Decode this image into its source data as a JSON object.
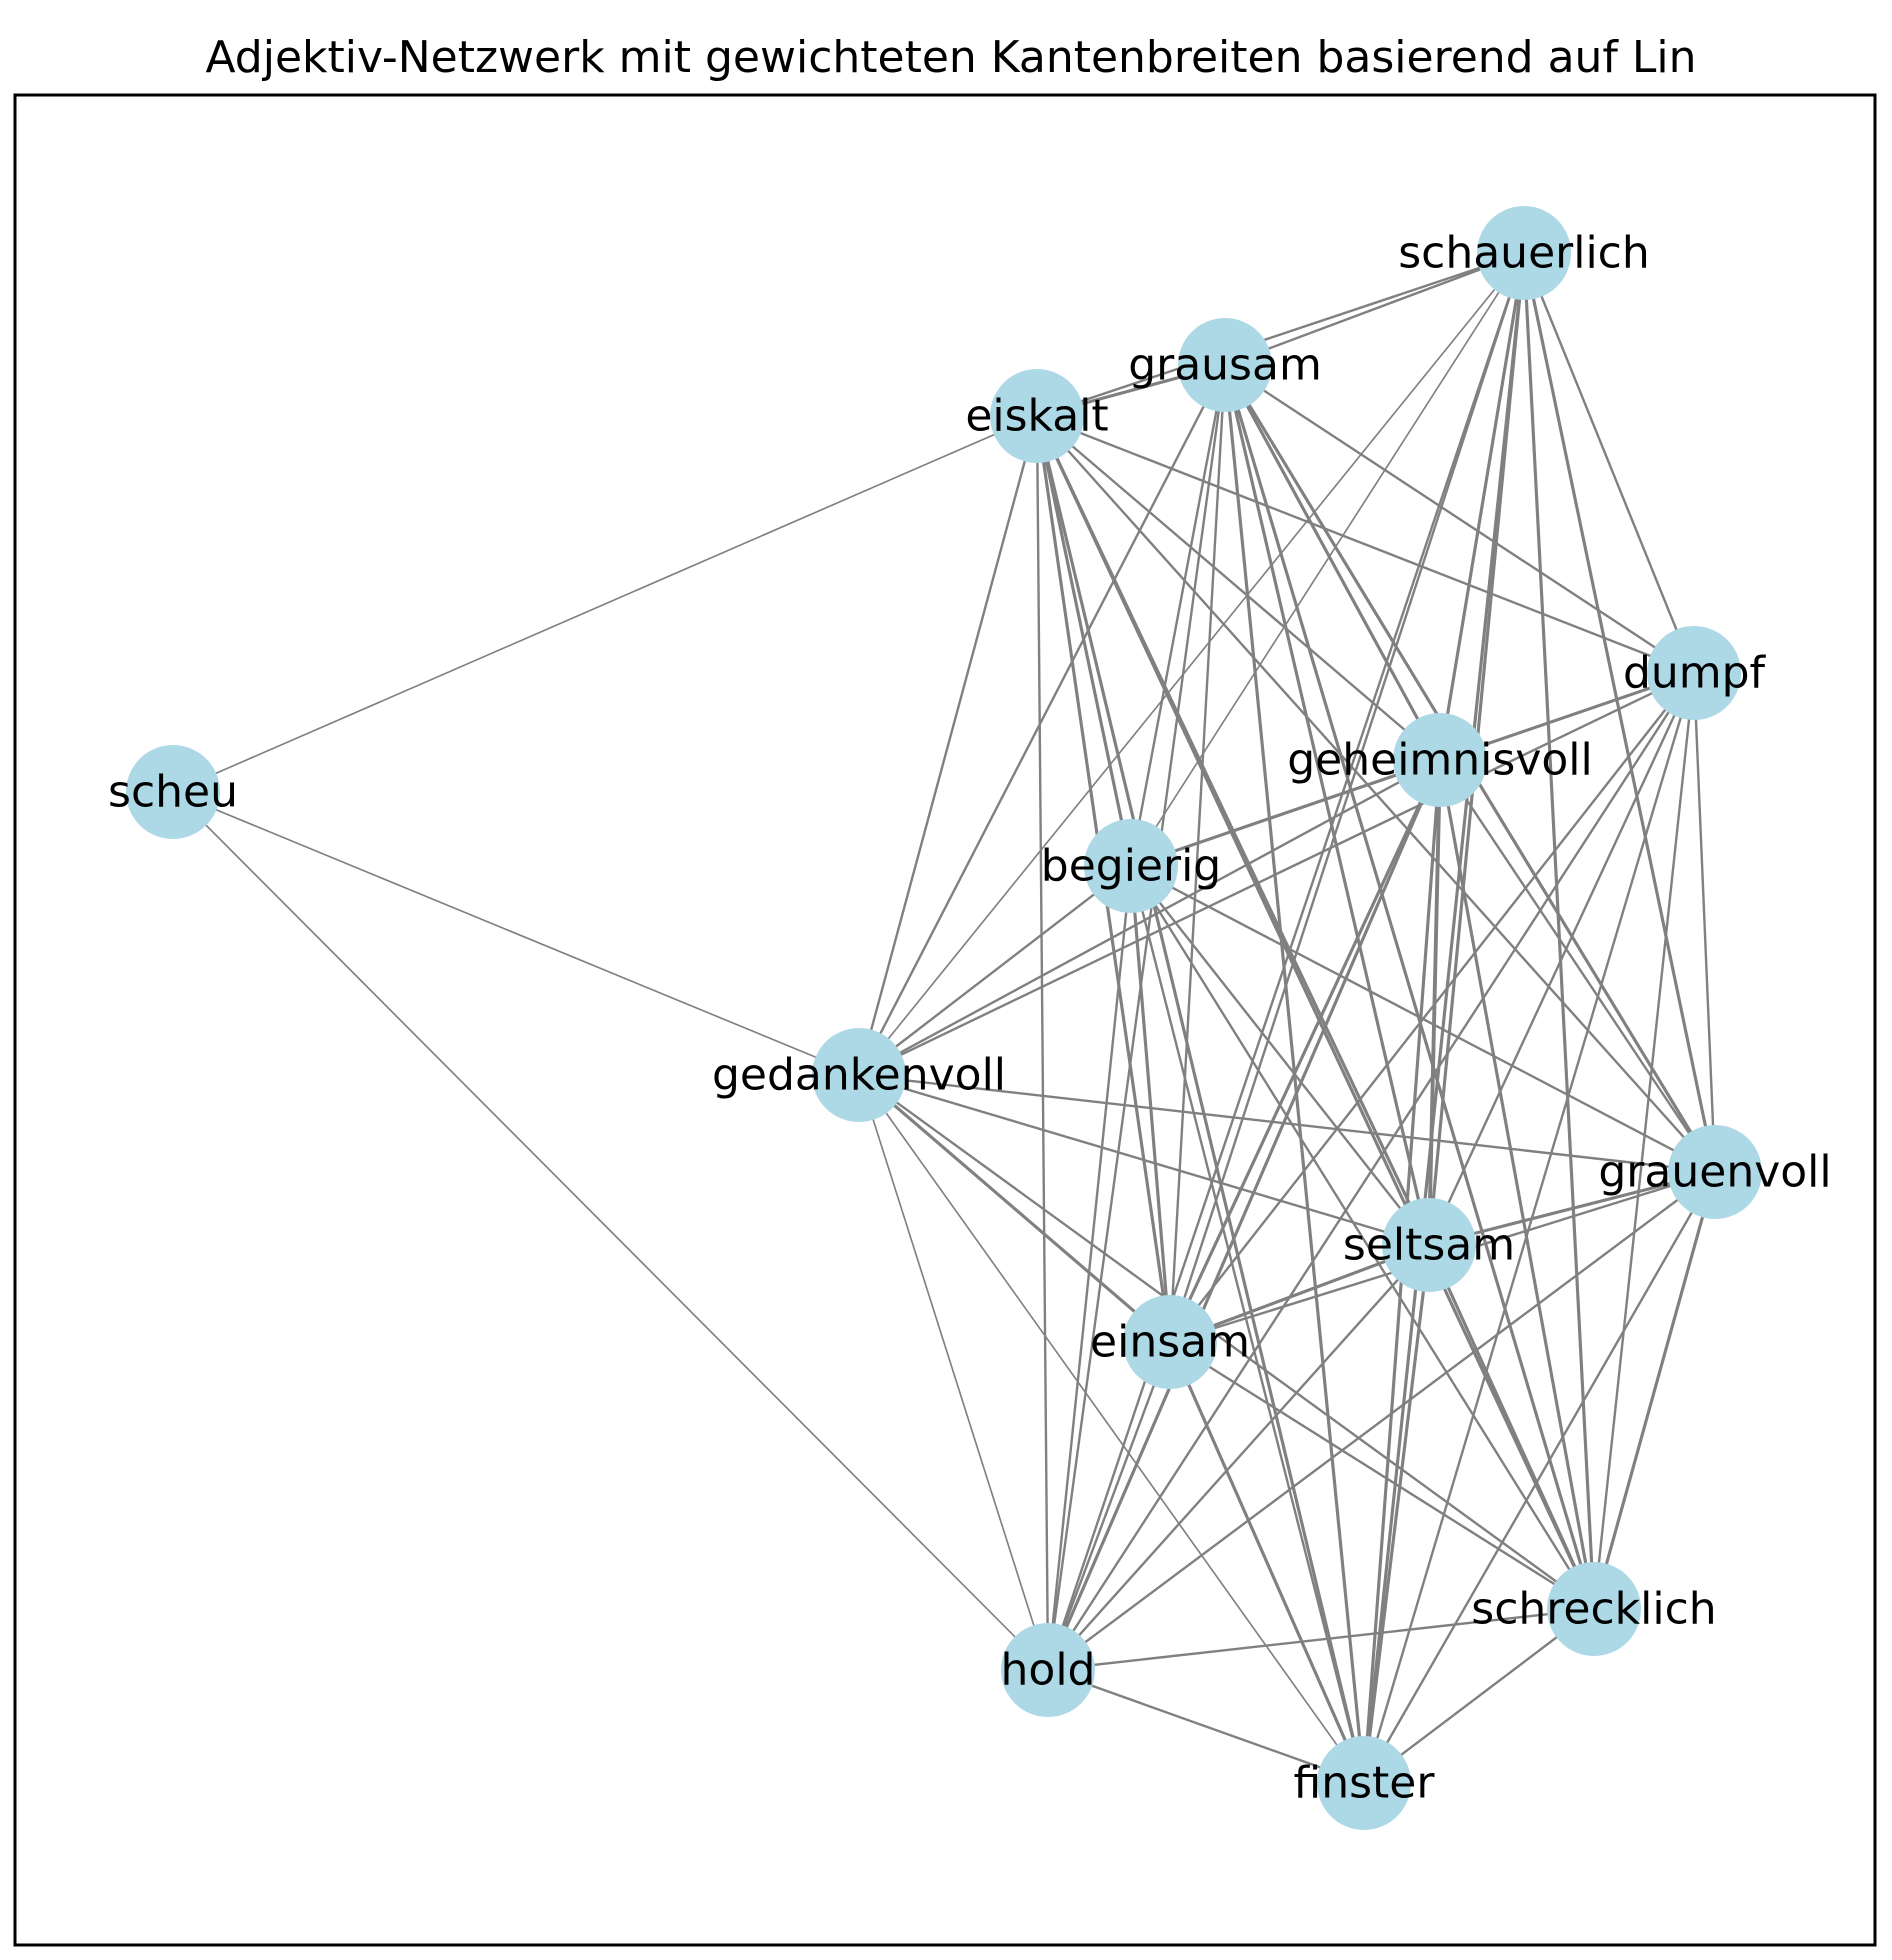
{
  "title": "Adjektiv-Netzwerk mit gewichteten Kantenbreiten basierend auf Lin",
  "colors": {
    "node_fill": "#add8e6",
    "edge_stroke": "#808080",
    "frame_stroke": "#000000",
    "background": "#ffffff"
  },
  "nodes": [
    {
      "id": "schauerlich",
      "label": "schauerlich"
    },
    {
      "id": "grausam",
      "label": "grausam"
    },
    {
      "id": "eiskalt",
      "label": "eiskalt"
    },
    {
      "id": "dumpf",
      "label": "dumpf"
    },
    {
      "id": "geheimnisvoll",
      "label": "geheimnisvoll"
    },
    {
      "id": "scheu",
      "label": "scheu"
    },
    {
      "id": "begierig",
      "label": "begierig"
    },
    {
      "id": "gedankenvoll",
      "label": "gedankenvoll"
    },
    {
      "id": "grauenvoll",
      "label": "grauenvoll"
    },
    {
      "id": "seltsam",
      "label": "seltsam"
    },
    {
      "id": "einsam",
      "label": "einsam"
    },
    {
      "id": "schrecklich",
      "label": "schrecklich"
    },
    {
      "id": "hold",
      "label": "hold"
    },
    {
      "id": "finster",
      "label": "finster"
    }
  ],
  "edges": [
    {
      "source": "scheu",
      "target": "eiskalt",
      "weight": 1
    },
    {
      "source": "scheu",
      "target": "gedankenvoll",
      "weight": 1
    },
    {
      "source": "scheu",
      "target": "hold",
      "weight": 1
    },
    {
      "source": "eiskalt",
      "target": "grausam",
      "weight": 3
    },
    {
      "source": "eiskalt",
      "target": "schauerlich",
      "weight": 2
    },
    {
      "source": "eiskalt",
      "target": "dumpf",
      "weight": 2
    },
    {
      "source": "eiskalt",
      "target": "geheimnisvoll",
      "weight": 2
    },
    {
      "source": "eiskalt",
      "target": "begierig",
      "weight": 3
    },
    {
      "source": "eiskalt",
      "target": "gedankenvoll",
      "weight": 2
    },
    {
      "source": "eiskalt",
      "target": "grauenvoll",
      "weight": 2
    },
    {
      "source": "eiskalt",
      "target": "seltsam",
      "weight": 3
    },
    {
      "source": "eiskalt",
      "target": "einsam",
      "weight": 3
    },
    {
      "source": "eiskalt",
      "target": "schrecklich",
      "weight": 3
    },
    {
      "source": "eiskalt",
      "target": "hold",
      "weight": 2
    },
    {
      "source": "eiskalt",
      "target": "finster",
      "weight": 3
    },
    {
      "source": "grausam",
      "target": "schauerlich",
      "weight": 2
    },
    {
      "source": "grausam",
      "target": "dumpf",
      "weight": 2
    },
    {
      "source": "grausam",
      "target": "geheimnisvoll",
      "weight": 3
    },
    {
      "source": "grausam",
      "target": "begierig",
      "weight": 2
    },
    {
      "source": "grausam",
      "target": "gedankenvoll",
      "weight": 2
    },
    {
      "source": "grausam",
      "target": "grauenvoll",
      "weight": 3
    },
    {
      "source": "grausam",
      "target": "seltsam",
      "weight": 3
    },
    {
      "source": "grausam",
      "target": "einsam",
      "weight": 2
    },
    {
      "source": "grausam",
      "target": "schrecklich",
      "weight": 3
    },
    {
      "source": "grausam",
      "target": "hold",
      "weight": 2
    },
    {
      "source": "grausam",
      "target": "finster",
      "weight": 3
    },
    {
      "source": "schauerlich",
      "target": "dumpf",
      "weight": 2
    },
    {
      "source": "schauerlich",
      "target": "geheimnisvoll",
      "weight": 3
    },
    {
      "source": "schauerlich",
      "target": "begierig",
      "weight": 1
    },
    {
      "source": "schauerlich",
      "target": "gedankenvoll",
      "weight": 1
    },
    {
      "source": "schauerlich",
      "target": "grauenvoll",
      "weight": 3
    },
    {
      "source": "schauerlich",
      "target": "seltsam",
      "weight": 3
    },
    {
      "source": "schauerlich",
      "target": "einsam",
      "weight": 2
    },
    {
      "source": "schauerlich",
      "target": "schrecklich",
      "weight": 3
    },
    {
      "source": "schauerlich",
      "target": "hold",
      "weight": 2
    },
    {
      "source": "schauerlich",
      "target": "finster",
      "weight": 3
    },
    {
      "source": "dumpf",
      "target": "geheimnisvoll",
      "weight": 3
    },
    {
      "source": "dumpf",
      "target": "begierig",
      "weight": 2
    },
    {
      "source": "dumpf",
      "target": "gedankenvoll",
      "weight": 2
    },
    {
      "source": "dumpf",
      "target": "grauenvoll",
      "weight": 2
    },
    {
      "source": "dumpf",
      "target": "seltsam",
      "weight": 2
    },
    {
      "source": "dumpf",
      "target": "einsam",
      "weight": 2
    },
    {
      "source": "dumpf",
      "target": "schrecklich",
      "weight": 2
    },
    {
      "source": "dumpf",
      "target": "hold",
      "weight": 2
    },
    {
      "source": "dumpf",
      "target": "finster",
      "weight": 2
    },
    {
      "source": "geheimnisvoll",
      "target": "begierig",
      "weight": 3
    },
    {
      "source": "geheimnisvoll",
      "target": "gedankenvoll",
      "weight": 2
    },
    {
      "source": "geheimnisvoll",
      "target": "grauenvoll",
      "weight": 2
    },
    {
      "source": "geheimnisvoll",
      "target": "seltsam",
      "weight": 4
    },
    {
      "source": "geheimnisvoll",
      "target": "einsam",
      "weight": 3
    },
    {
      "source": "geheimnisvoll",
      "target": "schrecklich",
      "weight": 3
    },
    {
      "source": "geheimnisvoll",
      "target": "hold",
      "weight": 3
    },
    {
      "source": "geheimnisvoll",
      "target": "finster",
      "weight": 3
    },
    {
      "source": "begierig",
      "target": "gedankenvoll",
      "weight": 2
    },
    {
      "source": "begierig",
      "target": "grauenvoll",
      "weight": 2
    },
    {
      "source": "begierig",
      "target": "seltsam",
      "weight": 2
    },
    {
      "source": "begierig",
      "target": "einsam",
      "weight": 3
    },
    {
      "source": "begierig",
      "target": "schrecklich",
      "weight": 2
    },
    {
      "source": "begierig",
      "target": "hold",
      "weight": 2
    },
    {
      "source": "begierig",
      "target": "finster",
      "weight": 2
    },
    {
      "source": "gedankenvoll",
      "target": "grauenvoll",
      "weight": 2
    },
    {
      "source": "gedankenvoll",
      "target": "seltsam",
      "weight": 2
    },
    {
      "source": "gedankenvoll",
      "target": "einsam",
      "weight": 3
    },
    {
      "source": "gedankenvoll",
      "target": "schrecklich",
      "weight": 2
    },
    {
      "source": "gedankenvoll",
      "target": "hold",
      "weight": 1
    },
    {
      "source": "gedankenvoll",
      "target": "finster",
      "weight": 1
    },
    {
      "source": "grauenvoll",
      "target": "seltsam",
      "weight": 3
    },
    {
      "source": "grauenvoll",
      "target": "einsam",
      "weight": 2
    },
    {
      "source": "grauenvoll",
      "target": "schrecklich",
      "weight": 3
    },
    {
      "source": "grauenvoll",
      "target": "hold",
      "weight": 2
    },
    {
      "source": "grauenvoll",
      "target": "finster",
      "weight": 2
    },
    {
      "source": "seltsam",
      "target": "einsam",
      "weight": 3
    },
    {
      "source": "seltsam",
      "target": "schrecklich",
      "weight": 3
    },
    {
      "source": "seltsam",
      "target": "hold",
      "weight": 2
    },
    {
      "source": "seltsam",
      "target": "finster",
      "weight": 3
    },
    {
      "source": "einsam",
      "target": "schrecklich",
      "weight": 2
    },
    {
      "source": "einsam",
      "target": "hold",
      "weight": 2
    },
    {
      "source": "einsam",
      "target": "finster",
      "weight": 3
    },
    {
      "source": "schrecklich",
      "target": "hold",
      "weight": 2
    },
    {
      "source": "schrecklich",
      "target": "finster",
      "weight": 2
    },
    {
      "source": "hold",
      "target": "finster",
      "weight": 2
    }
  ]
}
